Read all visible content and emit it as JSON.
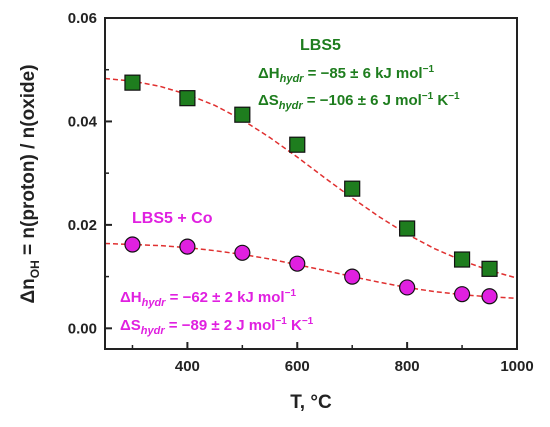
{
  "chart_data": {
    "type": "scatter",
    "xlabel": "T, °C",
    "ylabel_parts": {
      "delta": "Δn",
      "sub": "OH",
      "rest": " = n(proton) / n(oxide)"
    },
    "xlim": [
      250,
      1000
    ],
    "ylim": [
      -0.004,
      0.06
    ],
    "xticks": [
      400,
      600,
      800,
      1000
    ],
    "yticks": [
      0.0,
      0.02,
      0.04,
      0.06
    ],
    "ytick_labels": [
      "0.00",
      "0.02",
      "0.04",
      "0.06"
    ],
    "grid": false,
    "series": [
      {
        "name": "LBS5",
        "color": "#1e7d1e",
        "marker": "square",
        "x": [
          300,
          400,
          500,
          600,
          700,
          800,
          900,
          950
        ],
        "y": [
          0.0475,
          0.0445,
          0.0413,
          0.0355,
          0.027,
          0.0193,
          0.0133,
          0.0115
        ],
        "fit": {
          "x": [
            250,
            300,
            350,
            400,
            450,
            500,
            550,
            600,
            650,
            700,
            750,
            800,
            850,
            900,
            950,
            1000
          ],
          "y": [
            0.0483,
            0.0478,
            0.0468,
            0.0452,
            0.0431,
            0.0403,
            0.0369,
            0.0331,
            0.0291,
            0.0252,
            0.0215,
            0.0182,
            0.0154,
            0.0131,
            0.0112,
            0.0097
          ]
        },
        "annotation": {
          "dH": {
            "sym": "ΔH",
            "sub": "hydr",
            "val": " = −85 ± 6 kJ mol",
            "exp": "−1"
          },
          "dS": {
            "sym": "ΔS",
            "sub": "hydr",
            "val": " = −106 ± 6 J mol",
            "exp": "−1",
            "unit2": " K",
            "exp2": "−1"
          }
        }
      },
      {
        "name": "LBS5 + Co",
        "color": "#e020e0",
        "marker": "circle",
        "x": [
          300,
          400,
          500,
          600,
          700,
          800,
          900,
          950
        ],
        "y": [
          0.0162,
          0.0158,
          0.0146,
          0.0125,
          0.01,
          0.0079,
          0.0066,
          0.0062
        ],
        "fit": {
          "x": [
            250,
            300,
            350,
            400,
            450,
            500,
            550,
            600,
            650,
            700,
            750,
            800,
            850,
            900,
            950,
            1000
          ],
          "y": [
            0.0164,
            0.0162,
            0.016,
            0.0156,
            0.015,
            0.0143,
            0.0134,
            0.0123,
            0.0112,
            0.01,
            0.0089,
            0.0079,
            0.0071,
            0.0065,
            0.0061,
            0.0058
          ]
        },
        "annotation": {
          "dH": {
            "sym": "ΔH",
            "sub": "hydr",
            "val": " = −62 ± 2 kJ mol",
            "exp": "−1"
          },
          "dS": {
            "sym": "ΔS",
            "sub": "hydr",
            "val": " = −89 ± 2 J mol",
            "exp": "−1",
            "unit2": " K",
            "exp2": "−1"
          }
        }
      }
    ]
  }
}
